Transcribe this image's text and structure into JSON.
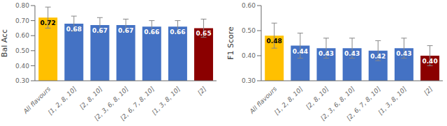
{
  "chart_data": [
    {
      "type": "bar",
      "categories": [
        "All flavours",
        "[1, 2, 8, 10]",
        "[2, 8, 10]",
        "[2, 3, 6, 8, 10]",
        "[2, 6, 7, 8, 10]",
        "[1, 3, 8, 10]",
        "[2]"
      ],
      "values": [
        0.72,
        0.68,
        0.67,
        0.67,
        0.66,
        0.66,
        0.65
      ],
      "errors": [
        0.07,
        0.05,
        0.05,
        0.04,
        0.04,
        0.04,
        0.06
      ],
      "colors": [
        "#FFC000",
        "#4472C4",
        "#4472C4",
        "#4472C4",
        "#4472C4",
        "#4472C4",
        "#8B0000"
      ],
      "ylabel": "Bal Acc",
      "ylim": [
        0.3,
        0.8
      ],
      "yticks": [
        {
          "value": 0.3,
          "label": "0.30"
        },
        {
          "value": 0.4,
          "label": "0.40"
        },
        {
          "value": 0.5,
          "label": "0.50"
        },
        {
          "value": 0.6,
          "label": "0.60"
        },
        {
          "value": 0.7,
          "label": "0.70"
        },
        {
          "value": 0.8,
          "label": "0.80"
        }
      ],
      "data_labels": true,
      "grid": false
    },
    {
      "type": "bar",
      "categories": [
        "All flavours",
        "[1, 2, 8, 10]",
        "[2, 8, 10]",
        "[2, 3, 6, 8, 10]",
        "[2, 6, 7, 8, 10]",
        "[1, 3, 8, 10]",
        "[2]"
      ],
      "values": [
        0.48,
        0.44,
        0.43,
        0.43,
        0.42,
        0.43,
        0.4
      ],
      "value_labels": [
        "0.48",
        "0.44",
        "0.43",
        "0.43",
        "0.42",
        "0.43",
        "0.40"
      ],
      "errors": [
        0.05,
        0.05,
        0.04,
        0.04,
        0.04,
        0.04,
        0.04
      ],
      "colors": [
        "#FFC000",
        "#4472C4",
        "#4472C4",
        "#4472C4",
        "#4472C4",
        "#4472C4",
        "#8B0000"
      ],
      "ylabel": "F1 Score",
      "ylim": [
        0.3,
        0.6
      ],
      "yticks": [
        {
          "value": 0.3,
          "label": "0.30"
        },
        {
          "value": 0.4,
          "label": "0.40"
        },
        {
          "value": 0.5,
          "label": "0.50"
        },
        {
          "value": 0.6,
          "label": "0.60"
        }
      ],
      "data_labels": true,
      "grid": false
    }
  ]
}
